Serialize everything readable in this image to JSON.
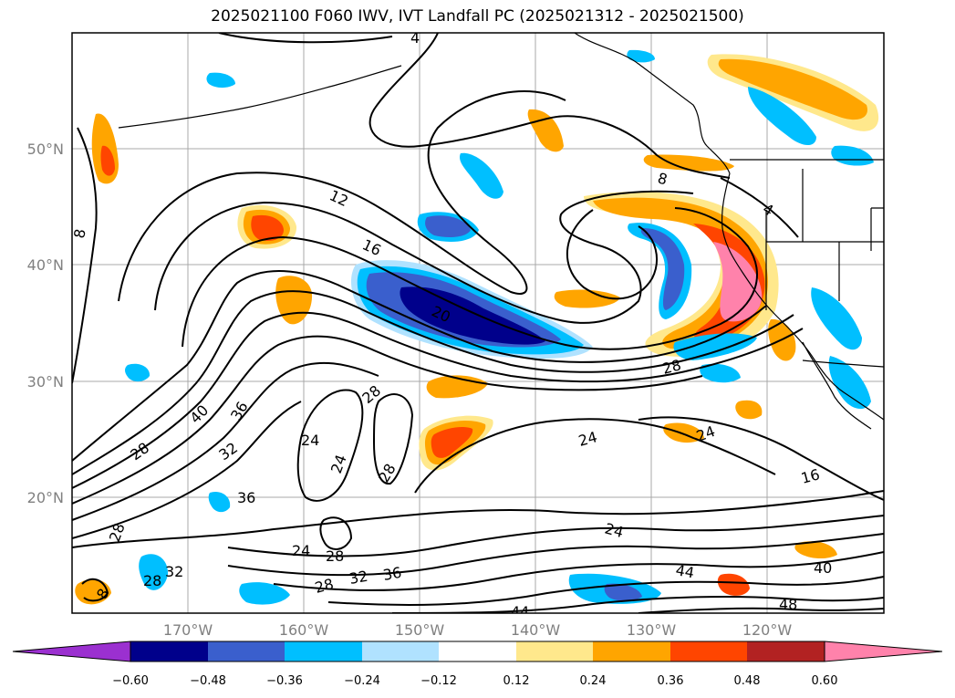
{
  "title": "2025021100 F060 IWV, IVT Landfall PC (2025021312 - 2025021500)",
  "lat_labels": [
    "50°N",
    "40°N",
    "30°N",
    "20°N"
  ],
  "lon_labels": [
    "170°W",
    "160°W",
    "150°W",
    "140°W",
    "130°W",
    "120°W"
  ],
  "colorbar": {
    "ticks": [
      "−0.60",
      "−0.48",
      "−0.36",
      "−0.24",
      "−0.12",
      "0.12",
      "0.24",
      "0.36",
      "0.48",
      "0.60"
    ],
    "colors": [
      "#9b30d0",
      "#00008b",
      "#3a5fcd",
      "#00bfff",
      "#b0e2ff",
      "#ffffff",
      "#ffe88c",
      "#ffa500",
      "#ff4500",
      "#b22222",
      "#ff82ab"
    ]
  },
  "contour_labels": [
    "12",
    "16",
    "8",
    "20",
    "8",
    "4",
    "4",
    "28",
    "28",
    "40",
    "36",
    "32",
    "28",
    "24",
    "24",
    "24",
    "28",
    "28",
    "24",
    "24",
    "16",
    "36",
    "28",
    "24",
    "28",
    "32",
    "36",
    "32",
    "28",
    "8",
    "44",
    "40",
    "48",
    "44"
  ]
}
